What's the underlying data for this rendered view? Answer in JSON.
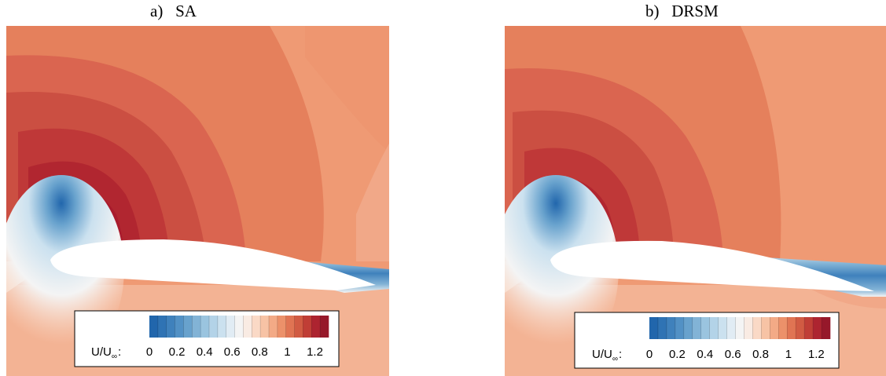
{
  "panels": [
    {
      "id": "a",
      "title": "a)   SA"
    },
    {
      "id": "b",
      "title": "b)   DRSM"
    }
  ],
  "colorbar": {
    "label_main": "U/U",
    "label_sub": "∞",
    "label_colon": ":",
    "ticks": [
      "0",
      "0.2",
      "0.4",
      "0.6",
      "0.8",
      "1",
      "1.2"
    ],
    "tick_values": [
      0,
      0.2,
      0.4,
      0.6,
      0.8,
      1.0,
      1.2
    ],
    "range": [
      0,
      1.3
    ],
    "levels": 21,
    "colors": [
      "#2166ac",
      "#2f73b4",
      "#3f81bc",
      "#5291c5",
      "#68a2cd",
      "#82b3d6",
      "#9ac4df",
      "#b3d3e8",
      "#cbe1ef",
      "#e1ecf4",
      "#f4f4f4",
      "#f9ebe3",
      "#fad9c6",
      "#f7c3a5",
      "#f3aa86",
      "#ec916a",
      "#e07453",
      "#d15b43",
      "#c03e36",
      "#ad2430",
      "#96182a"
    ]
  },
  "chart_data": [
    {
      "type": "heatmap",
      "title": "a)   SA",
      "variable": "U/U∞",
      "colorbar_ticks": [
        0,
        0.2,
        0.4,
        0.6,
        0.8,
        1.0,
        1.2
      ],
      "field_levels_upper_surface_region": [
        1.05,
        1.1,
        1.15,
        1.2,
        1.25,
        1.3
      ],
      "freestream_level": 1.0,
      "wake_min": 0.3
    },
    {
      "type": "heatmap",
      "title": "b)   DRSM",
      "variable": "U/U∞",
      "colorbar_ticks": [
        0,
        0.2,
        0.4,
        0.6,
        0.8,
        1.0,
        1.2
      ],
      "field_levels_upper_surface_region": [
        1.05,
        1.1,
        1.15,
        1.2,
        1.25,
        1.3
      ],
      "freestream_level": 1.0,
      "wake_min": 0.3
    }
  ]
}
